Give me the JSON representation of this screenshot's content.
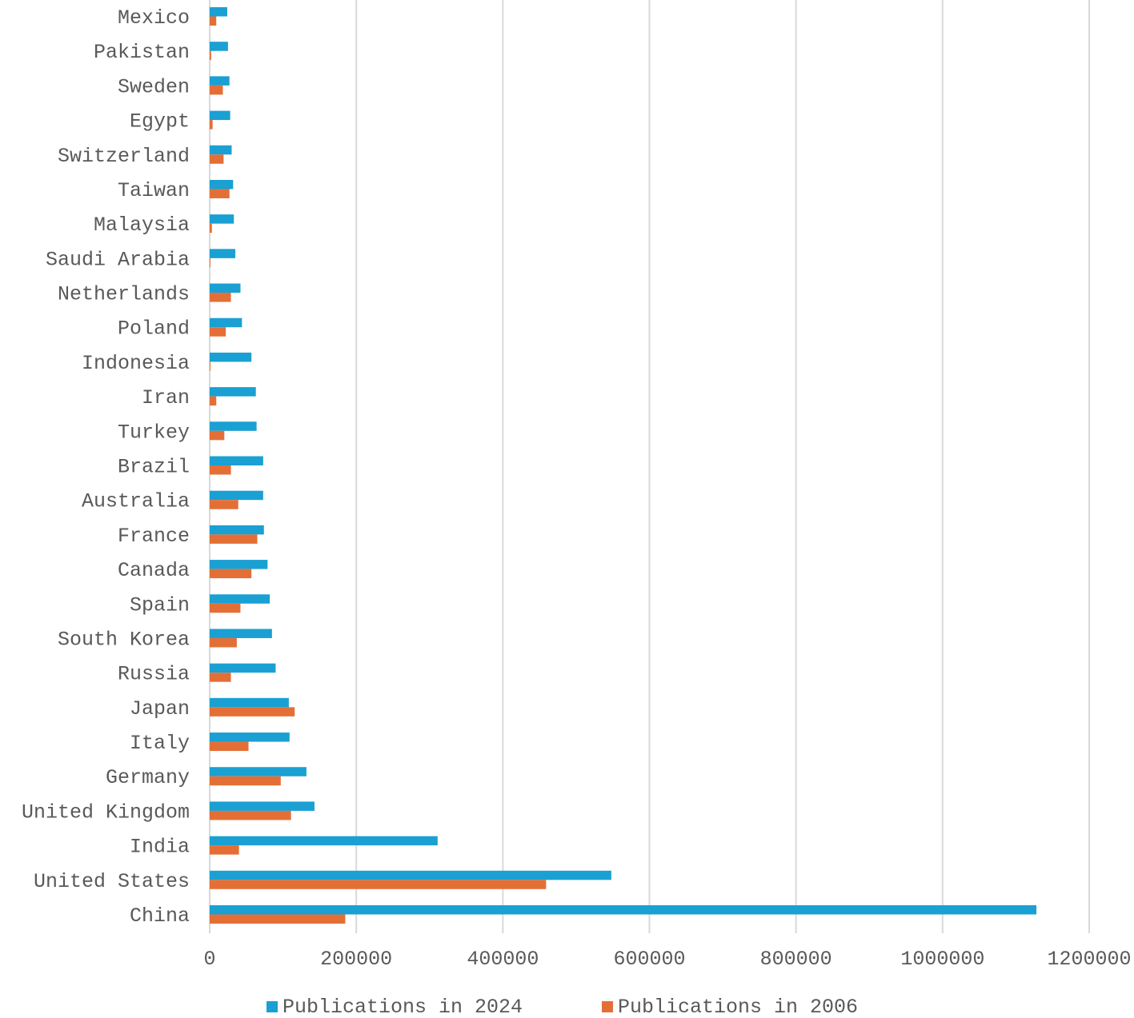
{
  "chart_data": {
    "type": "bar",
    "orientation": "horizontal",
    "title": "",
    "xlabel": "",
    "ylabel": "",
    "xlim": [
      0,
      1200000
    ],
    "x_ticks": [
      0,
      200000,
      400000,
      600000,
      800000,
      1000000,
      1200000
    ],
    "x_tick_labels": [
      "0",
      "200000",
      "400000",
      "600000",
      "800000",
      "1000000",
      "1200000"
    ],
    "grid": "vertical",
    "legend_position": "bottom",
    "categories": [
      "Mexico",
      "Pakistan",
      "Sweden",
      "Egypt",
      "Switzerland",
      "Taiwan",
      "Malaysia",
      "Saudi Arabia",
      "Netherlands",
      "Poland",
      "Indonesia",
      "Iran",
      "Turkey",
      "Brazil",
      "Australia",
      "France",
      "Canada",
      "Spain",
      "South Korea",
      "Russia",
      "Japan",
      "Italy",
      "Germany",
      "United Kingdom",
      "India",
      "United States",
      "China"
    ],
    "series": [
      {
        "name": "Publications in 2024",
        "color": "#1aa0d2",
        "values": [
          24000,
          25000,
          27000,
          28000,
          30000,
          32000,
          33000,
          35000,
          42000,
          44000,
          57000,
          63000,
          64000,
          73000,
          73000,
          74000,
          79000,
          82000,
          85000,
          90000,
          108000,
          109000,
          132000,
          143000,
          311000,
          548000,
          1128000
        ]
      },
      {
        "name": "Publications in 2006",
        "color": "#e46f36",
        "values": [
          9000,
          2000,
          18000,
          4000,
          19000,
          27000,
          3000,
          1000,
          29000,
          22000,
          1000,
          9000,
          20000,
          29000,
          39000,
          65000,
          57000,
          42000,
          37000,
          29000,
          116000,
          53000,
          97000,
          111000,
          40000,
          459000,
          185000
        ]
      }
    ]
  }
}
